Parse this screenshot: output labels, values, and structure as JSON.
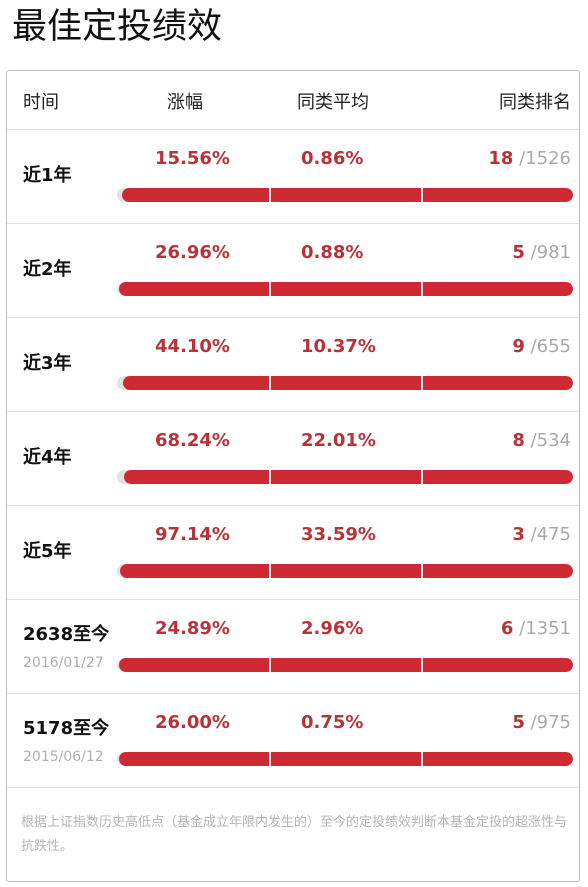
{
  "title": "最佳定投绩效",
  "table": {
    "headers": {
      "period": "时间",
      "gain": "涨幅",
      "avg": "同类平均",
      "rank": "同类排名"
    },
    "rows": [
      {
        "period": "近1年",
        "date": "",
        "gain": "15.56%",
        "avg": "0.86%",
        "rank_pos": "18",
        "rank_total": "/1526",
        "rank_fraction": 0.988
      },
      {
        "period": "近2年",
        "date": "",
        "gain": "26.96%",
        "avg": "0.88%",
        "rank_pos": "5",
        "rank_total": "/981",
        "rank_fraction": 0.995
      },
      {
        "period": "近3年",
        "date": "",
        "gain": "44.10%",
        "avg": "10.37%",
        "rank_pos": "9",
        "rank_total": "/655",
        "rank_fraction": 0.986
      },
      {
        "period": "近4年",
        "date": "",
        "gain": "68.24%",
        "avg": "22.01%",
        "rank_pos": "8",
        "rank_total": "/534",
        "rank_fraction": 0.985
      },
      {
        "period": "近5年",
        "date": "",
        "gain": "97.14%",
        "avg": "33.59%",
        "rank_pos": "3",
        "rank_total": "/475",
        "rank_fraction": 0.994
      },
      {
        "period": "2638至今",
        "date": "2016/01/27",
        "gain": "24.89%",
        "avg": "2.96%",
        "rank_pos": "6",
        "rank_total": "/1351",
        "rank_fraction": 0.996
      },
      {
        "period": "5178至今",
        "date": "2015/06/12",
        "gain": "26.00%",
        "avg": "0.75%",
        "rank_pos": "5",
        "rank_total": "/975",
        "rank_fraction": 0.995
      }
    ]
  },
  "note": "根据上证指数历史高低点（基金成立年限内发生的）至今的定投绩效判断本基金定投的超涨性与抗跌性。",
  "colors": {
    "accent": "#cd2a33",
    "text_red": "#b8323a",
    "track": "#e2e2e2",
    "muted": "#b0b0b0"
  }
}
